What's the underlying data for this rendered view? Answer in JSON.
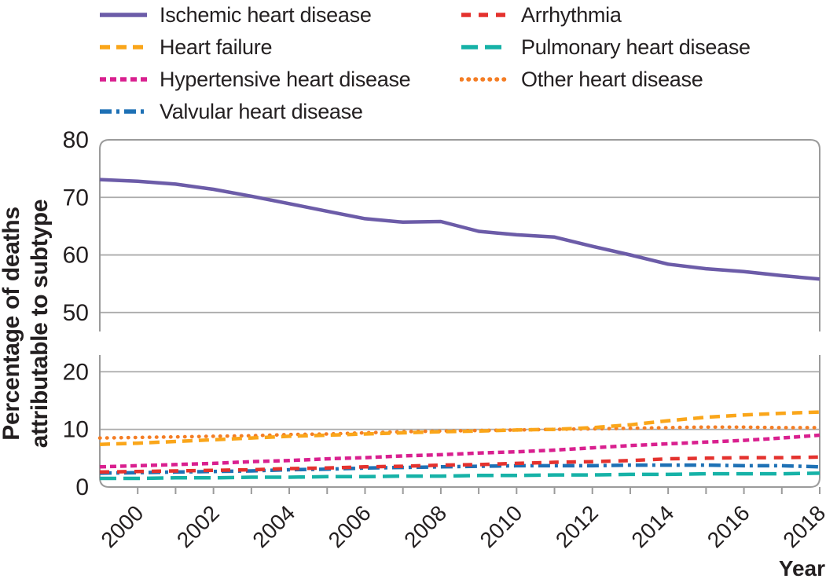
{
  "figure": {
    "y_axis_title_line1": "Percentage of deaths",
    "y_axis_title_line2": "attributable to subtype",
    "x_axis_title": "Year"
  },
  "colors": {
    "background": "#ffffff",
    "text": "#231f20",
    "panel_border": "#9b9b9b",
    "gridline": "#ababab",
    "tick": "#9b9b9b"
  },
  "chart_data": {
    "type": "line",
    "title": "",
    "xlabel": "Year",
    "ylabel": "Percentage of deaths attributable to subtype",
    "grid": true,
    "legend_position": "top",
    "broken_y_axis": {
      "top_panel": {
        "ylim": [
          46.7,
          80
        ],
        "gridline_ticks": [
          50,
          60,
          70
        ],
        "labeled_ticks": [
          50,
          60,
          70,
          80
        ]
      },
      "bottom_panel": {
        "ylim": [
          0,
          22.9
        ],
        "gridline_ticks": [
          10,
          20
        ],
        "labeled_ticks": [
          0,
          10,
          20
        ]
      }
    },
    "x_range": [
      1999,
      2018
    ],
    "x": [
      1999,
      2000,
      2001,
      2002,
      2003,
      2004,
      2005,
      2006,
      2007,
      2008,
      2009,
      2010,
      2011,
      2012,
      2013,
      2014,
      2015,
      2016,
      2017,
      2018
    ],
    "x_labeled_ticks": [
      2000,
      2002,
      2004,
      2006,
      2008,
      2010,
      2012,
      2014,
      2016,
      2018
    ],
    "series": [
      {
        "name": "Ischemic heart disease",
        "color": "#6c5ca8",
        "style": "solid",
        "panel": "top",
        "z": 1,
        "legend_col": 0,
        "legend_row": 0,
        "values": [
          73.1,
          72.8,
          72.3,
          71.4,
          70.2,
          68.9,
          67.6,
          66.3,
          65.7,
          65.8,
          64.1,
          63.5,
          63.1,
          61.5,
          60.0,
          58.4,
          57.6,
          57.1,
          56.4,
          55.8
        ]
      },
      {
        "name": "Arrhythmia",
        "color": "#e4322e",
        "style": "dash-sparse",
        "panel": "bottom",
        "z": 4,
        "legend_col": 1,
        "legend_row": 0,
        "values": [
          2.6,
          2.7,
          2.8,
          2.9,
          3.0,
          3.2,
          3.3,
          3.5,
          3.6,
          3.8,
          3.9,
          4.1,
          4.3,
          4.4,
          4.6,
          4.9,
          5.0,
          5.1,
          5.1,
          5.2
        ]
      },
      {
        "name": "Heart failure",
        "color": "#faa61a",
        "style": "dash",
        "panel": "bottom",
        "z": 7,
        "legend_col": 0,
        "legend_row": 1,
        "values": [
          7.4,
          7.6,
          7.9,
          8.2,
          8.5,
          8.8,
          9.0,
          9.2,
          9.4,
          9.6,
          9.7,
          9.9,
          10.0,
          10.3,
          10.8,
          11.5,
          12.1,
          12.5,
          12.8,
          13.0
        ]
      },
      {
        "name": "Pulmonary heart disease",
        "color": "#16b2a7",
        "style": "dash-long",
        "panel": "bottom",
        "z": 2,
        "legend_col": 1,
        "legend_row": 1,
        "values": [
          1.5,
          1.5,
          1.6,
          1.6,
          1.7,
          1.7,
          1.8,
          1.8,
          1.9,
          1.9,
          2.0,
          2.0,
          2.1,
          2.1,
          2.2,
          2.2,
          2.3,
          2.3,
          2.3,
          2.4
        ]
      },
      {
        "name": "Hypertensive heart disease",
        "color": "#d9208f",
        "style": "dash-dense",
        "panel": "bottom",
        "z": 5,
        "legend_col": 0,
        "legend_row": 2,
        "values": [
          3.5,
          3.7,
          3.9,
          4.1,
          4.4,
          4.6,
          4.9,
          5.1,
          5.4,
          5.6,
          5.9,
          6.1,
          6.4,
          6.8,
          7.2,
          7.5,
          7.8,
          8.1,
          8.5,
          9.0
        ]
      },
      {
        "name": "Other heart disease",
        "color": "#f47d24",
        "style": "dot",
        "panel": "bottom",
        "z": 6,
        "legend_col": 1,
        "legend_row": 2,
        "values": [
          8.5,
          8.6,
          8.7,
          8.8,
          8.9,
          9.1,
          9.2,
          9.4,
          9.6,
          9.7,
          9.8,
          9.9,
          10.0,
          10.1,
          10.2,
          10.3,
          10.4,
          10.4,
          10.3,
          10.3
        ]
      },
      {
        "name": "Valvular heart disease",
        "color": "#1e71b5",
        "style": "dash-dot",
        "panel": "top-none",
        "z": 3,
        "legend_col": 0,
        "legend_row": 3,
        "values": [
          2.4,
          2.5,
          2.6,
          2.7,
          2.8,
          3.0,
          3.1,
          3.3,
          3.4,
          3.5,
          3.6,
          3.7,
          3.7,
          3.7,
          3.8,
          3.8,
          3.8,
          3.7,
          3.7,
          3.5
        ]
      }
    ]
  }
}
